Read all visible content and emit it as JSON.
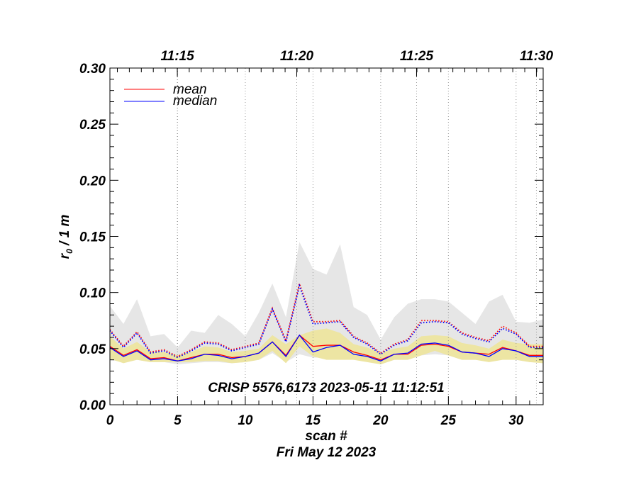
{
  "chart_data": {
    "type": "line",
    "xlabel": "scan #",
    "ylabel_main": "r",
    "ylabel_sub": "0",
    "ylabel_rest": " / 1 m",
    "date_label": "Fri May 12 2023",
    "annotation": "CRISP 5576,6173 2023-05-11 11:12:51",
    "xlim": [
      0,
      32
    ],
    "ylim": [
      0,
      0.3
    ],
    "x_ticks": [
      0,
      5,
      10,
      15,
      20,
      25,
      30
    ],
    "x_tick_labels": [
      "0",
      "5",
      "10",
      "15",
      "20",
      "25",
      "30"
    ],
    "y_ticks": [
      0.0,
      0.05,
      0.1,
      0.15,
      0.2,
      0.25,
      0.3
    ],
    "y_tick_labels": [
      "0.00",
      "0.05",
      "0.10",
      "0.15",
      "0.20",
      "0.25",
      "0.30"
    ],
    "top_time_ticks": [
      {
        "scan": 4.98,
        "label": "11:15"
      },
      {
        "scan": 13.8,
        "label": "11:20"
      },
      {
        "scan": 22.65,
        "label": "11:25"
      },
      {
        "scan": 31.5,
        "label": "11:30"
      }
    ],
    "dotted_gridlines_scan": [
      5,
      10,
      15,
      20,
      25,
      30,
      4.98,
      13.8,
      22.65,
      31.5
    ],
    "legend": {
      "placement": "top-left",
      "entries": [
        {
          "name": "mean",
          "color": "#ff0000"
        },
        {
          "name": "median",
          "color": "#0000ff"
        }
      ]
    },
    "x": [
      0,
      1,
      2,
      3,
      4,
      5,
      6,
      7,
      8,
      9,
      10,
      11,
      12,
      13,
      14,
      15,
      16,
      17,
      18,
      19,
      20,
      21,
      22,
      23,
      24,
      25,
      26,
      27,
      28,
      29,
      30,
      31,
      32
    ],
    "series": [
      {
        "name": "mean",
        "color": "#ff0000",
        "style": "solid",
        "values": [
          0.052,
          0.044,
          0.049,
          0.041,
          0.042,
          0.039,
          0.042,
          0.045,
          0.045,
          0.042,
          0.043,
          0.046,
          0.056,
          0.044,
          0.062,
          0.052,
          0.053,
          0.053,
          0.047,
          0.044,
          0.04,
          0.045,
          0.045,
          0.053,
          0.054,
          0.052,
          0.047,
          0.046,
          0.045,
          0.051,
          0.048,
          0.044,
          0.044
        ]
      },
      {
        "name": "median",
        "color": "#0000ff",
        "style": "solid",
        "values": [
          0.051,
          0.043,
          0.048,
          0.04,
          0.041,
          0.039,
          0.041,
          0.045,
          0.044,
          0.041,
          0.043,
          0.046,
          0.056,
          0.043,
          0.062,
          0.047,
          0.051,
          0.053,
          0.045,
          0.043,
          0.039,
          0.045,
          0.046,
          0.054,
          0.055,
          0.053,
          0.047,
          0.046,
          0.043,
          0.05,
          0.048,
          0.043,
          0.043
        ]
      },
      {
        "color": "#ff0000",
        "style": "dotted",
        "values": [
          0.067,
          0.052,
          0.065,
          0.047,
          0.049,
          0.043,
          0.049,
          0.056,
          0.055,
          0.049,
          0.052,
          0.055,
          0.086,
          0.057,
          0.108,
          0.074,
          0.074,
          0.075,
          0.061,
          0.055,
          0.046,
          0.054,
          0.058,
          0.075,
          0.075,
          0.074,
          0.064,
          0.06,
          0.057,
          0.07,
          0.064,
          0.052,
          0.052
        ]
      },
      {
        "color": "#0000ff",
        "style": "dotted",
        "values": [
          0.066,
          0.051,
          0.064,
          0.046,
          0.048,
          0.042,
          0.048,
          0.055,
          0.054,
          0.048,
          0.051,
          0.054,
          0.085,
          0.056,
          0.106,
          0.072,
          0.073,
          0.074,
          0.06,
          0.054,
          0.045,
          0.053,
          0.057,
          0.073,
          0.074,
          0.073,
          0.063,
          0.059,
          0.056,
          0.068,
          0.063,
          0.051,
          0.051
        ]
      }
    ],
    "bands": [
      {
        "color": "#e6e6e6",
        "lower": [
          0.04,
          0.038,
          0.04,
          0.038,
          0.038,
          0.036,
          0.037,
          0.038,
          0.038,
          0.037,
          0.038,
          0.04,
          0.046,
          0.038,
          0.045,
          0.042,
          0.042,
          0.043,
          0.04,
          0.04,
          0.036,
          0.04,
          0.04,
          0.044,
          0.045,
          0.044,
          0.04,
          0.04,
          0.04,
          0.042,
          0.04,
          0.038,
          0.038
        ],
        "upper": [
          0.088,
          0.072,
          0.094,
          0.061,
          0.063,
          0.051,
          0.066,
          0.064,
          0.08,
          0.072,
          0.061,
          0.082,
          0.108,
          0.078,
          0.145,
          0.121,
          0.116,
          0.143,
          0.087,
          0.08,
          0.058,
          0.078,
          0.09,
          0.094,
          0.094,
          0.092,
          0.082,
          0.072,
          0.092,
          0.098,
          0.074,
          0.073,
          0.076
        ]
      },
      {
        "color": "#ede5a3",
        "lower": [
          0.041,
          0.037,
          0.04,
          0.038,
          0.038,
          0.038,
          0.038,
          0.039,
          0.039,
          0.037,
          0.038,
          0.04,
          0.048,
          0.037,
          0.052,
          0.043,
          0.04,
          0.04,
          0.04,
          0.038,
          0.036,
          0.04,
          0.04,
          0.044,
          0.048,
          0.044,
          0.04,
          0.04,
          0.038,
          0.04,
          0.04,
          0.038,
          0.037
        ],
        "upper": [
          0.061,
          0.05,
          0.056,
          0.047,
          0.047,
          0.044,
          0.047,
          0.052,
          0.051,
          0.047,
          0.048,
          0.05,
          0.062,
          0.054,
          0.062,
          0.066,
          0.068,
          0.064,
          0.054,
          0.051,
          0.046,
          0.05,
          0.052,
          0.061,
          0.062,
          0.061,
          0.055,
          0.053,
          0.05,
          0.058,
          0.055,
          0.054,
          0.054
        ]
      }
    ]
  }
}
